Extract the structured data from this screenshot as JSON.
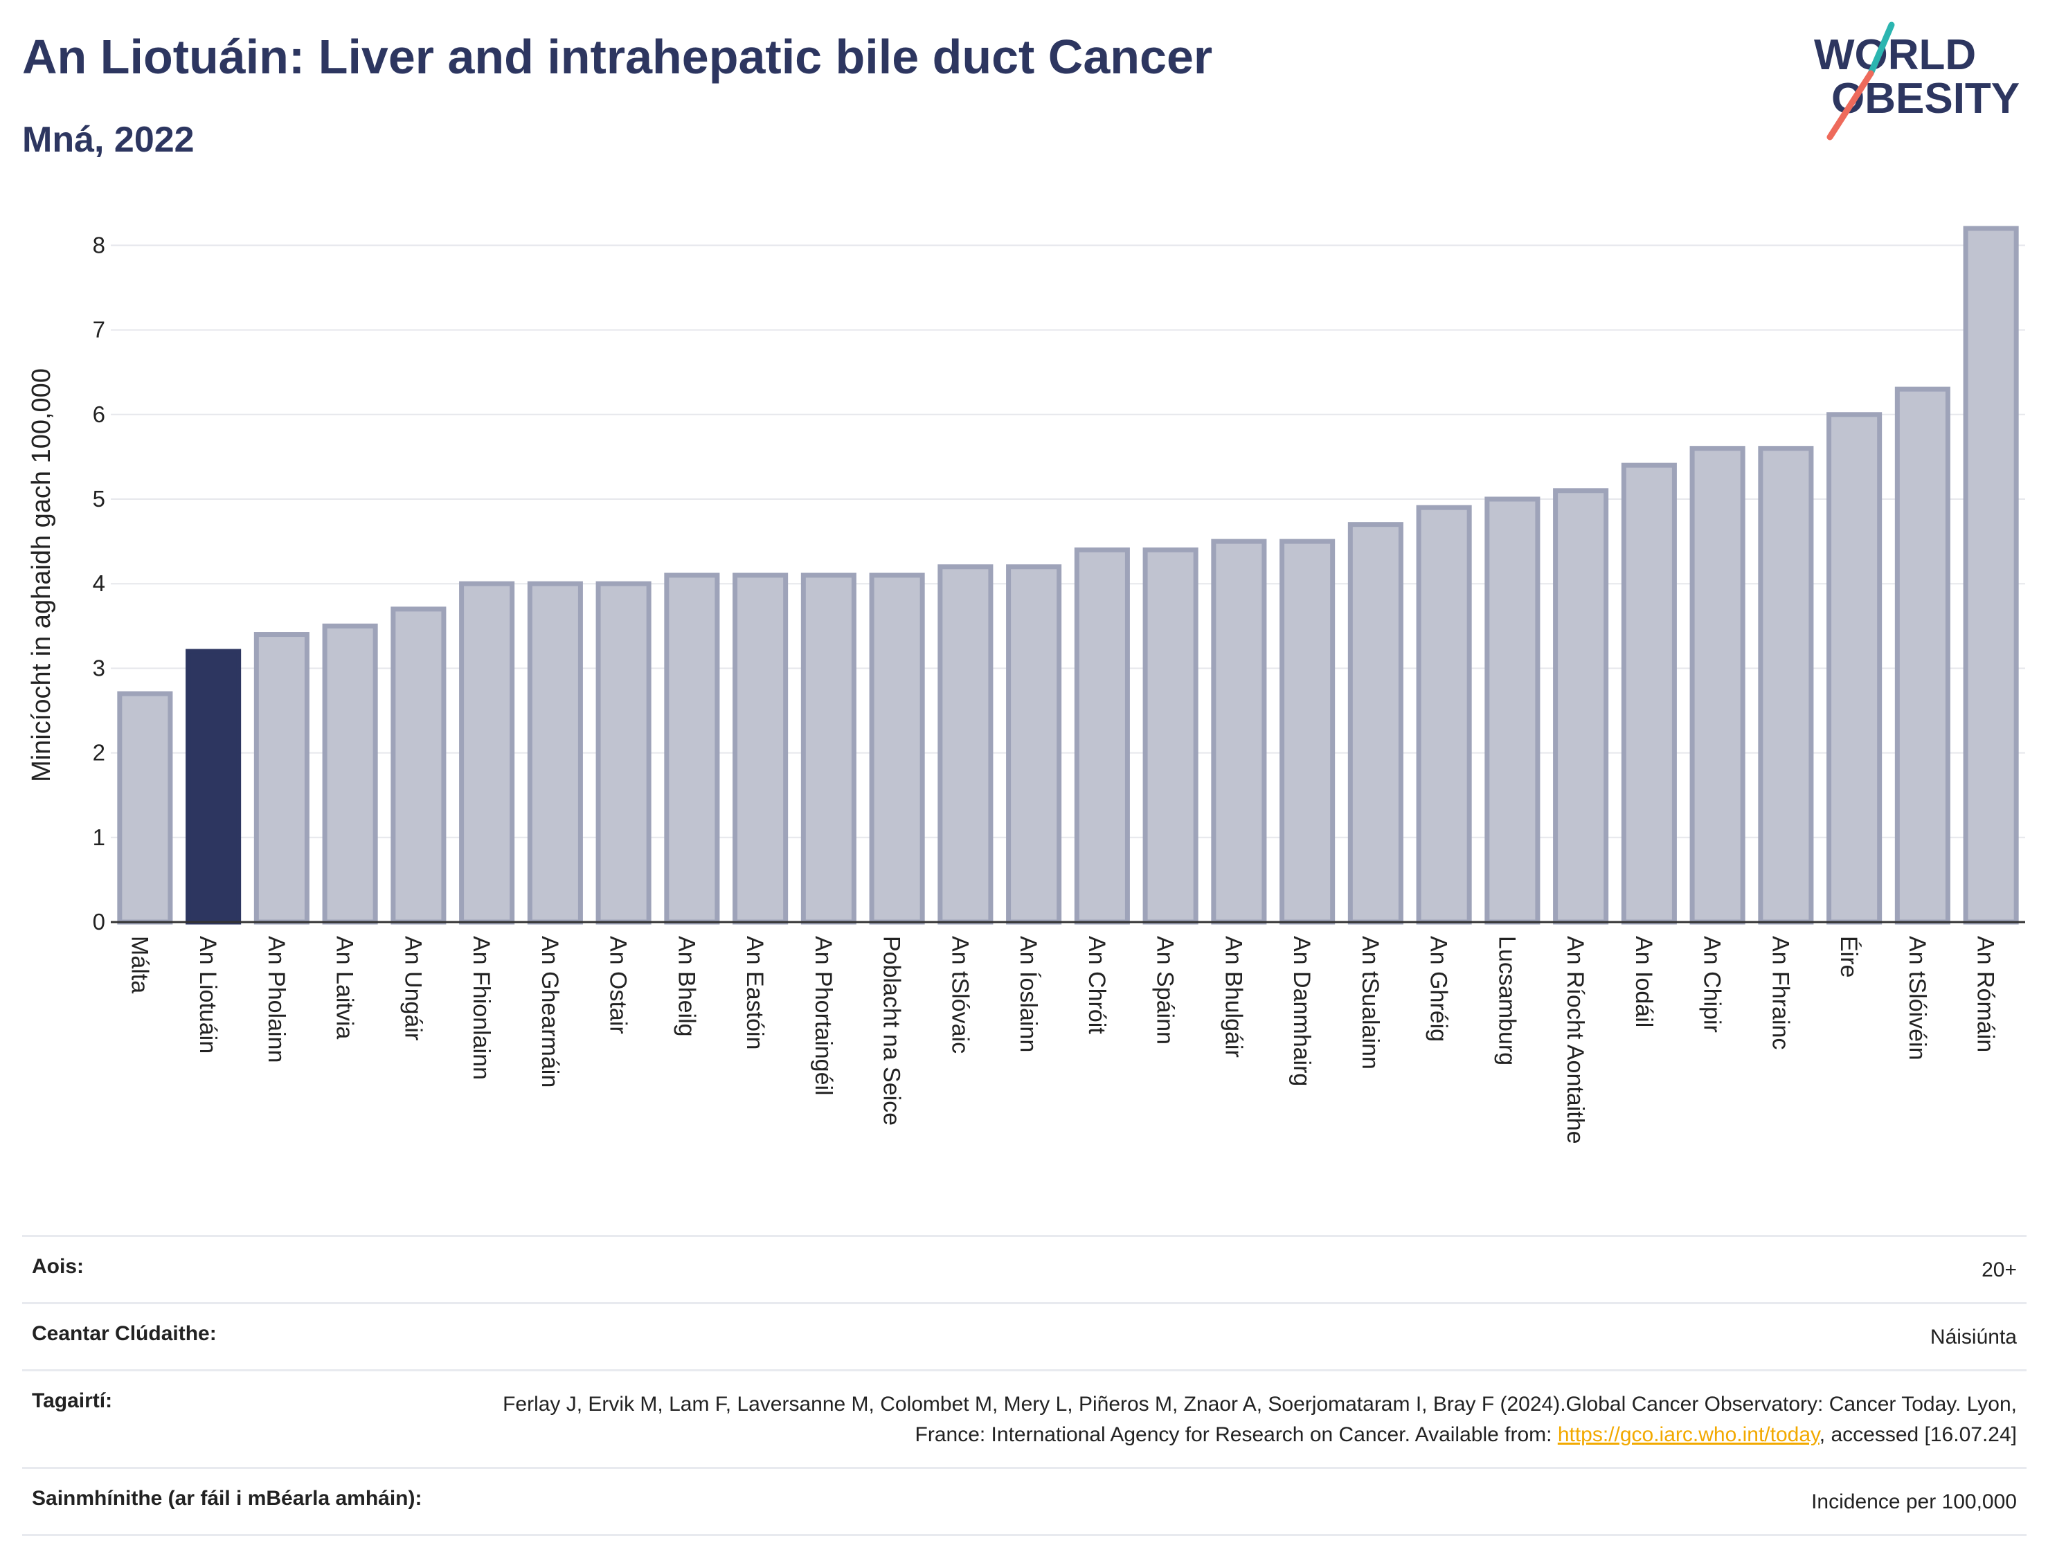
{
  "header": {
    "title": "An Liotuáin: Liver and intrahepatic bile duct Cancer",
    "subtitle": "Mná, 2022"
  },
  "logo": {
    "line1": "WORLD",
    "line2": "OBESITY"
  },
  "colors": {
    "highlight": "#2d3660",
    "bar_fill": "#c0c3d0",
    "bar_stroke": "#9ea3b9",
    "accent_teal": "#2bb5b0",
    "accent_coral": "#ee6a5b",
    "link": "#f2a900"
  },
  "chart_data": {
    "type": "bar",
    "title": "An Liotuáin: Liver and intrahepatic bile duct Cancer",
    "subtitle": "Mná, 2022",
    "ylabel": "Minicíocht in aghaidh gach 100,000",
    "xlabel": "",
    "ylim": [
      0,
      8.3
    ],
    "yticks": [
      0,
      1,
      2,
      3,
      4,
      5,
      6,
      7,
      8
    ],
    "grid": true,
    "highlight_category": "An Liotuáin",
    "categories": [
      "Málta",
      "An Liotuáin",
      "An Pholainn",
      "An Laitvia",
      "An Ungáir",
      "An Fhionlainn",
      "An Ghearmáin",
      "An Ostair",
      "An Bheilg",
      "An Eastóin",
      "An Phortaingéil",
      "Poblacht na Seice",
      "An tSlóvaic",
      "An Íoslainn",
      "An Chróit",
      "An Spáinn",
      "An Bhulgáir",
      "An Danmhairg",
      "An tSualainn",
      "An Ghréig",
      "Lucsamburg",
      "An Ríocht Aontaithe",
      "An Iodáil",
      "An Chipir",
      "An Fhrainc",
      "Éire",
      "An tSlóivéin",
      "An Rómáin"
    ],
    "values": [
      2.7,
      3.2,
      3.4,
      3.5,
      3.7,
      4.0,
      4.0,
      4.0,
      4.1,
      4.1,
      4.1,
      4.1,
      4.2,
      4.2,
      4.4,
      4.4,
      4.5,
      4.5,
      4.7,
      4.9,
      5.0,
      5.1,
      5.4,
      5.6,
      5.6,
      6.0,
      6.3,
      8.2
    ]
  },
  "meta": {
    "age_label": "Aois:",
    "age_value": "20+",
    "coverage_label": "Ceantar Clúdaithe:",
    "coverage_value": "Náisiúnta",
    "refs_label": "Tagairtí:",
    "refs_text_1": "Ferlay J, Ervik M, Lam F, Laversanne M, Colombet M, Mery L, Piñeros M, Znaor A, Soerjomataram I, Bray F (2024).Global Cancer Observatory: Cancer Today. Lyon, France: International Agency for Research on Cancer. Available from: ",
    "refs_link": "https://gco.iarc.who.int/today",
    "refs_text_2": ", accessed [16.07.24]",
    "definitions_label": "Sainmhínithe (ar fáil i mBéarla amháin):",
    "definitions_value": "Incidence per 100,000"
  }
}
